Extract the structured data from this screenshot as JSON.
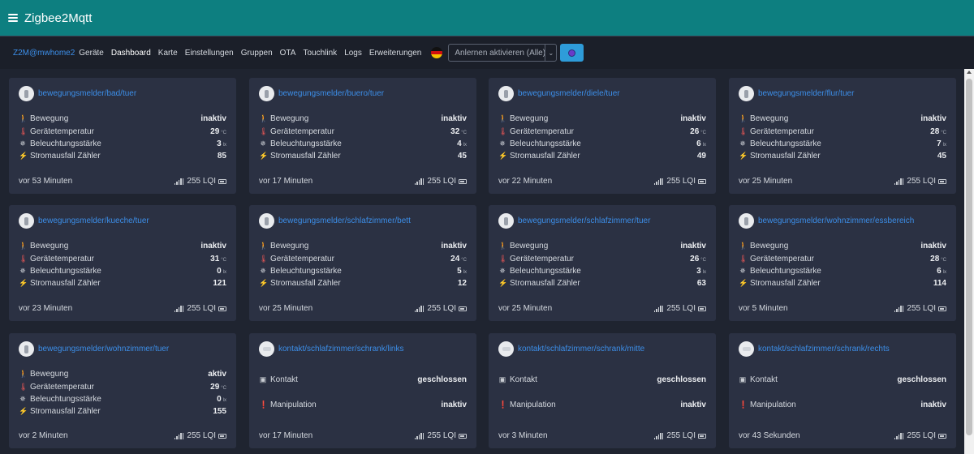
{
  "app": {
    "title": "Zigbee2Mqtt"
  },
  "nav": {
    "brand": "Z2M@mwhome2",
    "items": [
      "Geräte",
      "Dashboard",
      "Karte",
      "Einstellungen",
      "Gruppen",
      "OTA",
      "Touchlink",
      "Logs",
      "Erweiterungen"
    ],
    "active": "Dashboard",
    "language_flag": "german-flag-icon",
    "permit_join_select": "Anlernen aktivieren (Alle)"
  },
  "colors": {
    "topbar": "#0d7f80",
    "accent": "#3c8ee8",
    "card": "#2b3143",
    "background": "#1f2430"
  },
  "labels": {
    "bewegung": "Bewegung",
    "temperatur": "Gerätetemperatur",
    "beleuchtung": "Beleuchtungsstärke",
    "stromausfall": "Stromausfall Zähler",
    "kontakt": "Kontakt",
    "manipulation": "Manipulation",
    "unit_temp": "°C",
    "unit_lux": "lx",
    "lqi": "255 LQI"
  },
  "cards": [
    {
      "type": "motion",
      "title": "bewegungsmelder/bad/tuer",
      "bewegung": "inaktiv",
      "temp": "29",
      "lux": "3",
      "zaehler": "85",
      "last_seen": "vor 53 Minuten"
    },
    {
      "type": "motion",
      "title": "bewegungsmelder/buero/tuer",
      "bewegung": "inaktiv",
      "temp": "32",
      "lux": "4",
      "zaehler": "45",
      "last_seen": "vor 17 Minuten"
    },
    {
      "type": "motion",
      "title": "bewegungsmelder/diele/tuer",
      "bewegung": "inaktiv",
      "temp": "26",
      "lux": "6",
      "zaehler": "49",
      "last_seen": "vor 22 Minuten"
    },
    {
      "type": "motion",
      "title": "bewegungsmelder/flur/tuer",
      "bewegung": "inaktiv",
      "temp": "28",
      "lux": "7",
      "zaehler": "45",
      "last_seen": "vor 25 Minuten"
    },
    {
      "type": "motion",
      "title": "bewegungsmelder/kueche/tuer",
      "bewegung": "inaktiv",
      "temp": "31",
      "lux": "0",
      "zaehler": "121",
      "last_seen": "vor 23 Minuten"
    },
    {
      "type": "motion",
      "title": "bewegungsmelder/schlafzimmer/bett",
      "bewegung": "inaktiv",
      "temp": "24",
      "lux": "5",
      "zaehler": "12",
      "last_seen": "vor 25 Minuten"
    },
    {
      "type": "motion",
      "title": "bewegungsmelder/schlafzimmer/tuer",
      "bewegung": "inaktiv",
      "temp": "26",
      "lux": "3",
      "zaehler": "63",
      "last_seen": "vor 25 Minuten"
    },
    {
      "type": "motion",
      "title": "bewegungsmelder/wohnzimmer/essbereich",
      "bewegung": "inaktiv",
      "temp": "28",
      "lux": "6",
      "zaehler": "114",
      "last_seen": "vor 5 Minuten"
    },
    {
      "type": "motion",
      "title": "bewegungsmelder/wohnzimmer/tuer",
      "bewegung": "aktiv",
      "temp": "29",
      "lux": "0",
      "zaehler": "155",
      "last_seen": "vor 2 Minuten"
    },
    {
      "type": "contact",
      "title": "kontakt/schlafzimmer/schrank/links",
      "kontakt": "geschlossen",
      "manipulation": "inaktiv",
      "last_seen": "vor 17 Minuten"
    },
    {
      "type": "contact",
      "title": "kontakt/schlafzimmer/schrank/mitte",
      "kontakt": "geschlossen",
      "manipulation": "inaktiv",
      "last_seen": "vor 3 Minuten"
    },
    {
      "type": "contact",
      "title": "kontakt/schlafzimmer/schrank/rechts",
      "kontakt": "geschlossen",
      "manipulation": "inaktiv",
      "last_seen": "vor 43 Sekunden"
    }
  ]
}
